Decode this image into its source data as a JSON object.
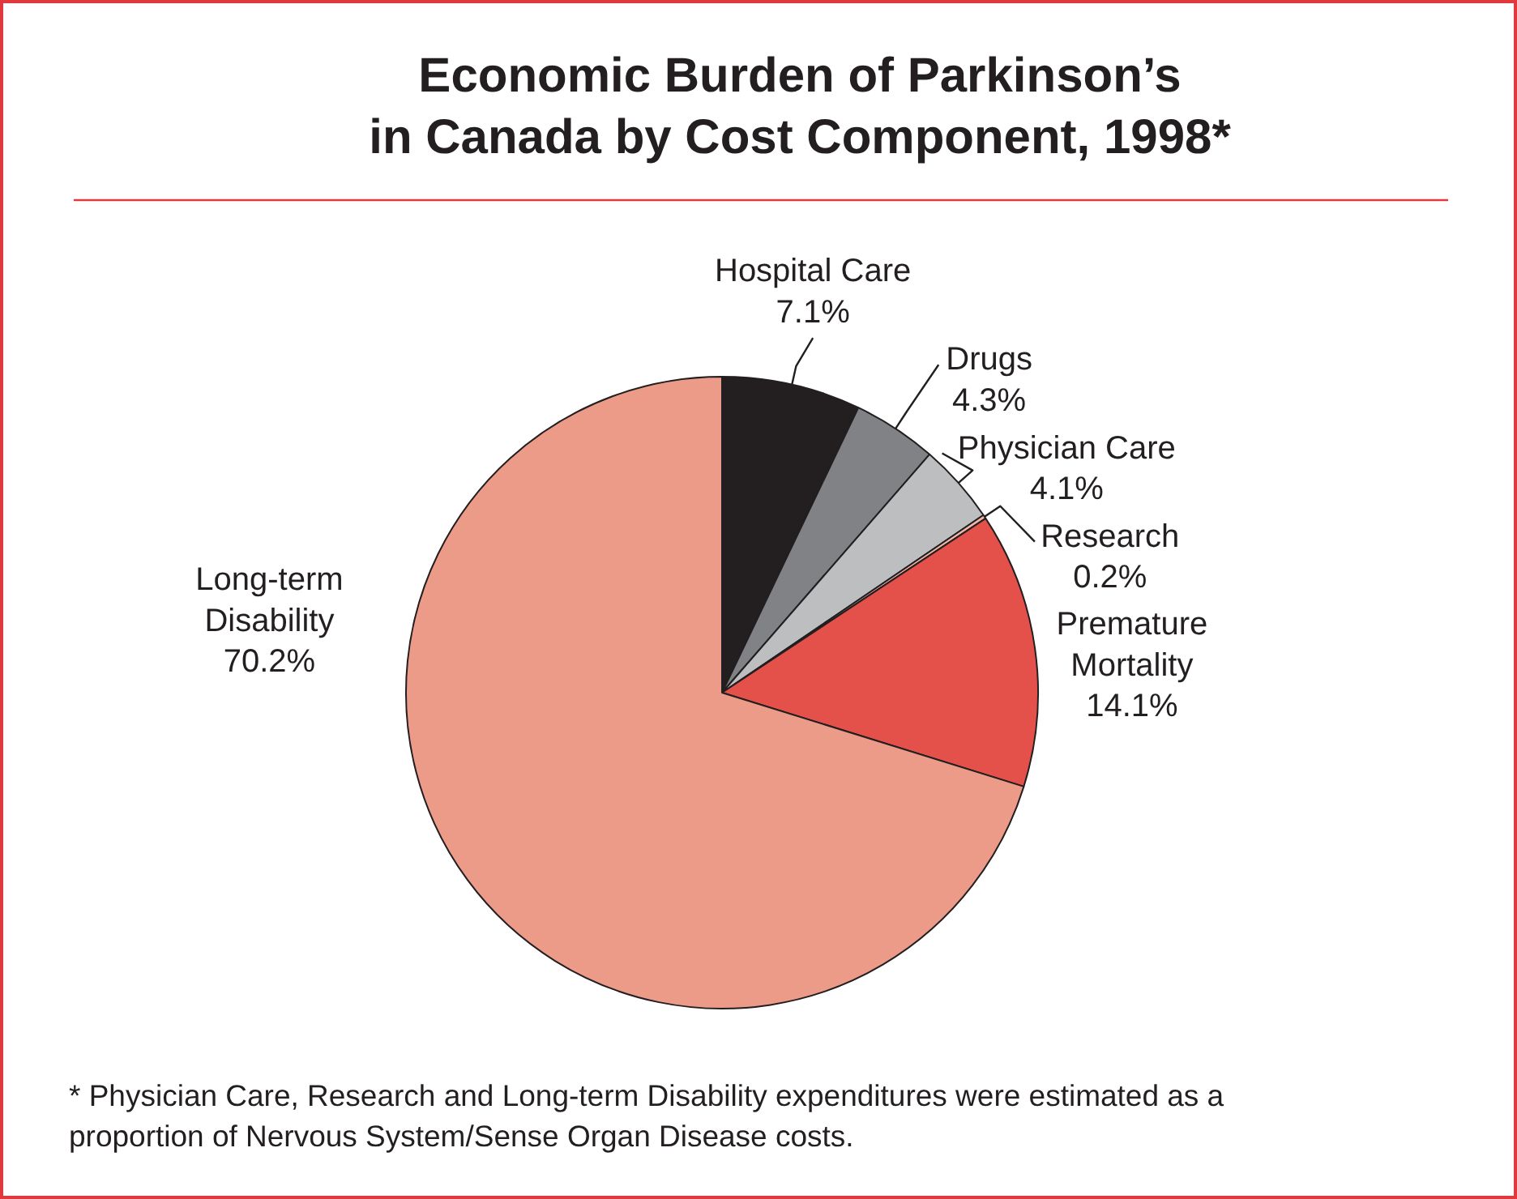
{
  "chart_data": {
    "type": "pie",
    "title": "Economic Burden of Parkinson’s\nin Canada by Cost Component, 1998*",
    "categories": [
      "Hospital Care",
      "Drugs",
      "Physician Care",
      "Research",
      "Premature Mortality",
      "Long-term Disability"
    ],
    "values": [
      7.1,
      4.3,
      4.1,
      0.2,
      14.1,
      70.2
    ],
    "colors": [
      "#231f20",
      "#808285",
      "#bcbec0",
      "#f4b6a6",
      "#e4514b",
      "#ed9b89"
    ],
    "value_labels": [
      "7.1%",
      "4.3%",
      "4.1%",
      "0.2%",
      "14.1%",
      "70.2%"
    ],
    "annotations": [
      "* Physician Care, Research and Long-term Disability expenditures were estimated as a proportion of Nervous System/Sense Organ Disease costs."
    ]
  }
}
